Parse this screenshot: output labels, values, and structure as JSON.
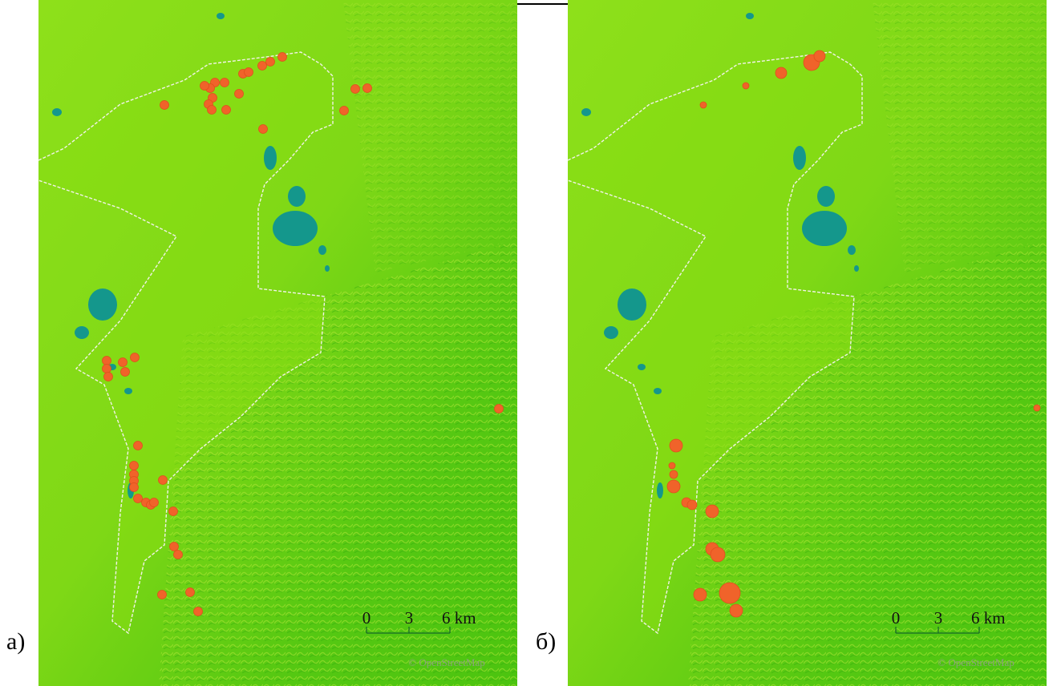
{
  "panels": [
    {
      "label": "а)",
      "scale": {
        "ticks": [
          "0",
          "3",
          "6 km"
        ]
      },
      "attribution": "© OpenStreetMap"
    },
    {
      "label": "б)",
      "scale": {
        "ticks": [
          "0",
          "3",
          "6 km"
        ]
      },
      "attribution": "© OpenStreetMap"
    }
  ]
}
